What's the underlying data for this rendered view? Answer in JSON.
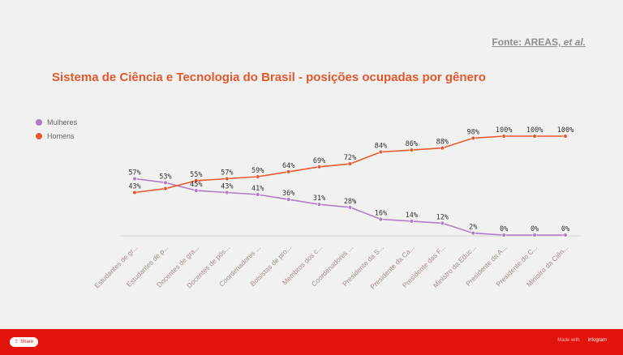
{
  "source": {
    "prefix": "Fonte: AREAS, ",
    "italic": "et al."
  },
  "chart_data": {
    "type": "line",
    "title": "Sistema de Ciência e Tecnologia do Brasil - posições ocupadas por gênero",
    "xlabel": "",
    "ylabel": "",
    "ylim": [
      0,
      100
    ],
    "grid": false,
    "legend_position": "top-left",
    "categories": [
      "Estudantes de gr...",
      "Estudantes de p...",
      "Docentes de gra...",
      "Docentes de pós...",
      "Coordenadores ...",
      "Bolsistas de pro...",
      "Membros dos c...",
      "Coordenadores ...",
      "Presidente da S...",
      "Presidente da Ca...",
      "Presidente das F...",
      "Ministro da Educ...",
      "Presidente da A...",
      "Presidente do C...",
      "Ministro da Ciên..."
    ],
    "series": [
      {
        "name": "Mulheres",
        "color": "#b07cc6",
        "values": [
          57,
          53,
          45,
          43,
          41,
          36,
          31,
          28,
          16,
          14,
          12,
          2,
          0,
          0,
          0
        ],
        "labels": [
          "57%",
          "53%",
          "45%",
          "43%",
          "41%",
          "36%",
          "31%",
          "28%",
          "16%",
          "14%",
          "12%",
          "2%",
          "0%",
          "0%",
          "0%"
        ]
      },
      {
        "name": "Homens",
        "color": "#e8582e",
        "values": [
          43,
          47,
          55,
          57,
          59,
          64,
          69,
          72,
          84,
          86,
          88,
          98,
          100,
          100,
          100
        ],
        "labels": [
          "43%",
          "",
          "55%",
          "57%",
          "59%",
          "64%",
          "69%",
          "72%",
          "84%",
          "86%",
          "88%",
          "98%",
          "100%",
          "100%",
          "100%"
        ]
      }
    ]
  },
  "footer": {
    "share": "Share",
    "powered": "Made with",
    "brand": "infogram"
  }
}
